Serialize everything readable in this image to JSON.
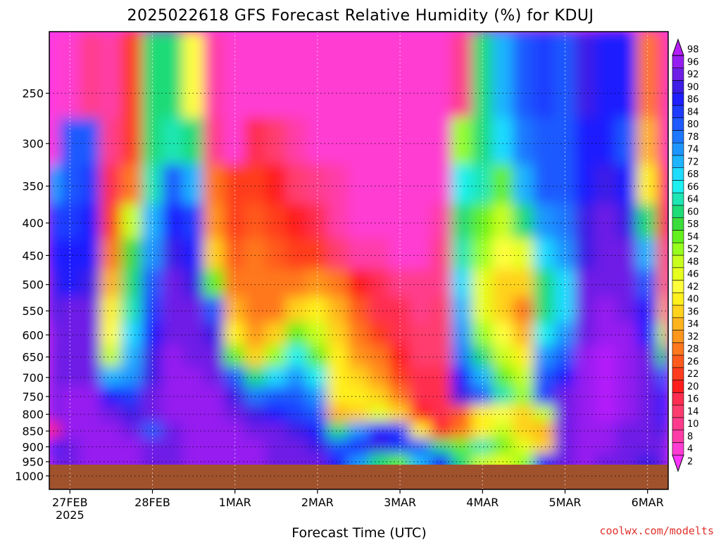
{
  "chart_data": {
    "type": "heatmap",
    "title": "2025022618 GFS Forecast Relative Humidity (%) for KDUJ",
    "xlabel": "Forecast Time (UTC)",
    "ylabel": "",
    "credit": "coolwx.com/modelts",
    "x_start_label": "2025",
    "x_ticks": [
      "27FEB",
      "28FEB",
      "1MAR",
      "2MAR",
      "3MAR",
      "4MAR",
      "5MAR",
      "6MAR"
    ],
    "x_tick_hours": [
      6,
      30,
      54,
      78,
      102,
      126,
      150,
      174
    ],
    "x_range_hours": [
      0,
      180
    ],
    "y_ticks": [
      250,
      300,
      350,
      400,
      450,
      500,
      550,
      600,
      650,
      700,
      750,
      800,
      850,
      900,
      950,
      1000
    ],
    "y_range_hpa": [
      200,
      1050
    ],
    "y_scale": "log-pressure",
    "ground_level_hpa": 960,
    "grid": true,
    "colorbar": {
      "levels": [
        2,
        4,
        8,
        10,
        14,
        16,
        20,
        22,
        26,
        28,
        32,
        34,
        36,
        40,
        42,
        46,
        48,
        52,
        54,
        58,
        60,
        64,
        66,
        68,
        72,
        74,
        78,
        80,
        84,
        86,
        90,
        92,
        96,
        98
      ],
      "colors": [
        "#ff33ff",
        "#ff3cd2",
        "#ff3ca8",
        "#ff3c8c",
        "#ff3c6e",
        "#ff2d50",
        "#ff1e1e",
        "#ff3c1e",
        "#ff5a1e",
        "#ff781e",
        "#ff961e",
        "#ffb41e",
        "#ffd21e",
        "#fff01e",
        "#ffff3c",
        "#e6ff1e",
        "#c8ff1e",
        "#96ff1e",
        "#64f01e",
        "#3cdc3c",
        "#1edc78",
        "#1ee6b4",
        "#1ef0f0",
        "#1edcff",
        "#1eb4ff",
        "#1e96ff",
        "#1e78ff",
        "#1e5aff",
        "#1e3cff",
        "#1e1eff",
        "#3c1ee6",
        "#6e1ee6",
        "#961ef0",
        "#b41efa"
      ],
      "position": "right"
    },
    "rh_field_hpa": [
      250,
      300,
      350,
      400,
      450,
      500,
      550,
      600,
      650,
      700,
      750,
      800,
      850,
      900,
      950
    ],
    "rh_field_hours": [
      0,
      6,
      12,
      18,
      24,
      30,
      36,
      42,
      48,
      54,
      60,
      66,
      72,
      78,
      84,
      90,
      96,
      102,
      108,
      114,
      120,
      126,
      132,
      138,
      144,
      150,
      156,
      162,
      168,
      174,
      180
    ],
    "rh_field": [
      [
        5,
        5,
        12,
        8,
        25,
        60,
        62,
        45,
        8,
        4,
        6,
        4,
        4,
        4,
        4,
        4,
        4,
        4,
        4,
        4,
        10,
        60,
        72,
        80,
        84,
        80,
        90,
        88,
        86,
        30,
        10
      ],
      [
        5,
        80,
        82,
        10,
        25,
        62,
        65,
        60,
        10,
        6,
        18,
        14,
        8,
        6,
        5,
        5,
        5,
        5,
        5,
        5,
        52,
        62,
        70,
        78,
        82,
        80,
        86,
        88,
        82,
        35,
        12
      ],
      [
        72,
        82,
        84,
        18,
        28,
        65,
        80,
        72,
        28,
        22,
        24,
        20,
        14,
        10,
        8,
        6,
        6,
        6,
        6,
        6,
        66,
        64,
        56,
        72,
        80,
        82,
        88,
        90,
        86,
        40,
        16
      ],
      [
        84,
        84,
        86,
        22,
        50,
        72,
        88,
        84,
        32,
        24,
        26,
        22,
        20,
        16,
        8,
        6,
        6,
        6,
        6,
        8,
        60,
        56,
        50,
        62,
        74,
        78,
        90,
        92,
        90,
        60,
        20
      ],
      [
        86,
        86,
        88,
        28,
        58,
        76,
        90,
        88,
        36,
        26,
        28,
        26,
        24,
        24,
        14,
        8,
        8,
        6,
        6,
        10,
        64,
        52,
        44,
        46,
        70,
        74,
        90,
        94,
        92,
        72,
        26
      ],
      [
        90,
        88,
        90,
        34,
        60,
        80,
        92,
        90,
        56,
        30,
        30,
        28,
        30,
        32,
        30,
        20,
        16,
        10,
        10,
        12,
        68,
        46,
        38,
        36,
        62,
        70,
        92,
        94,
        92,
        80,
        30
      ],
      [
        90,
        92,
        92,
        40,
        64,
        84,
        94,
        92,
        80,
        34,
        30,
        30,
        38,
        40,
        34,
        26,
        18,
        16,
        12,
        14,
        72,
        46,
        38,
        30,
        60,
        70,
        92,
        96,
        94,
        86,
        34
      ],
      [
        92,
        94,
        92,
        42,
        70,
        88,
        95,
        94,
        90,
        40,
        32,
        36,
        54,
        48,
        36,
        28,
        22,
        16,
        14,
        14,
        74,
        52,
        42,
        34,
        66,
        74,
        94,
        96,
        96,
        88,
        50
      ],
      [
        92,
        94,
        94,
        50,
        72,
        90,
        96,
        94,
        94,
        56,
        38,
        52,
        66,
        56,
        40,
        32,
        28,
        20,
        14,
        14,
        78,
        62,
        48,
        40,
        74,
        80,
        96,
        98,
        96,
        92,
        62
      ],
      [
        94,
        95,
        95,
        72,
        76,
        90,
        96,
        96,
        95,
        80,
        60,
        68,
        74,
        66,
        40,
        36,
        32,
        24,
        16,
        16,
        86,
        72,
        56,
        50,
        82,
        86,
        96,
        98,
        96,
        94,
        80
      ],
      [
        95,
        96,
        96,
        86,
        84,
        92,
        96,
        96,
        96,
        90,
        78,
        80,
        80,
        76,
        40,
        40,
        36,
        28,
        18,
        16,
        90,
        80,
        64,
        52,
        84,
        92,
        96,
        98,
        96,
        94,
        86
      ],
      [
        95,
        96,
        96,
        94,
        90,
        94,
        96,
        96,
        96,
        94,
        90,
        88,
        84,
        82,
        34,
        38,
        46,
        36,
        20,
        16,
        26,
        40,
        44,
        36,
        50,
        94,
        96,
        98,
        96,
        94,
        88
      ],
      [
        20,
        96,
        96,
        96,
        94,
        80,
        92,
        96,
        96,
        96,
        94,
        92,
        90,
        88,
        60,
        76,
        88,
        84,
        40,
        20,
        30,
        40,
        48,
        38,
        34,
        92,
        96,
        96,
        94,
        92,
        90
      ],
      [
        86,
        94,
        96,
        96,
        96,
        92,
        92,
        96,
        96,
        96,
        96,
        94,
        92,
        90,
        80,
        88,
        90,
        88,
        80,
        60,
        56,
        64,
        56,
        46,
        36,
        94,
        96,
        96,
        92,
        92,
        92
      ],
      [
        92,
        94,
        96,
        96,
        96,
        94,
        94,
        96,
        96,
        96,
        96,
        94,
        94,
        92,
        88,
        76,
        60,
        56,
        72,
        86,
        62,
        48,
        46,
        52,
        88,
        94,
        96,
        94,
        92,
        90,
        92
      ]
    ]
  }
}
